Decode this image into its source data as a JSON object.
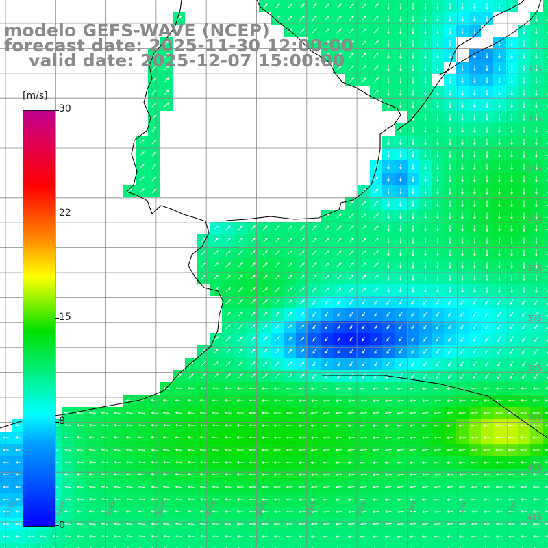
{
  "header": {
    "line1": "modelo GEFS-WAVE (NCEP)",
    "line2": "forecast date: 2025-11-30 12:00:00",
    "line3": "valid date: 2025-12-07 15:00:00"
  },
  "colorbar": {
    "unit": "[m/s]",
    "ticks": [
      "30",
      "22",
      "15",
      "8",
      "0"
    ],
    "min": 0,
    "max": 30,
    "colors": [
      "#0000ff",
      "#00a0ff",
      "#00ffff",
      "#00e000",
      "#ffff00",
      "#ff8000",
      "#ff0000",
      "#e00050",
      "#c00090"
    ]
  },
  "grid": {
    "lat_labels": [
      "32S",
      "33S",
      "34S",
      "35S",
      "36S",
      "37S",
      "38S",
      "39S",
      "40S",
      "41S"
    ],
    "lon_labels": [
      "61W",
      "60W",
      "59W",
      "58W",
      "57W",
      "56W",
      "55W",
      "54W",
      "53W",
      "52W",
      "51W"
    ]
  },
  "field": {
    "variable": "wind speed",
    "max_speed_ms": 18,
    "arrow_color": "#ffffff",
    "land_color": "#ffffff",
    "coast_color": "#000000",
    "grid_color": "#888888"
  }
}
